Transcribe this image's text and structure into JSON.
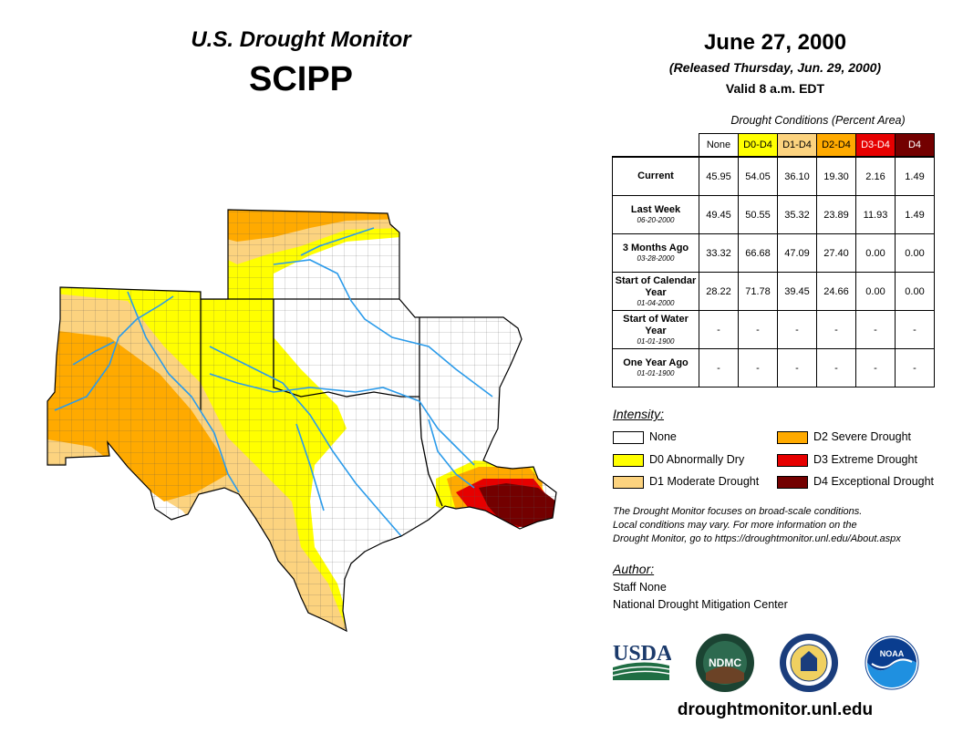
{
  "header": {
    "title": "U.S. Drought Monitor",
    "region": "SCIPP",
    "date": "June 27, 2000",
    "released": "(Released Thursday, Jun. 29, 2000)",
    "valid": "Valid 8 a.m. EDT"
  },
  "conditions": {
    "caption": "Drought Conditions (Percent Area)",
    "columns": [
      "None",
      "D0-D4",
      "D1-D4",
      "D2-D4",
      "D3-D4",
      "D4"
    ],
    "rows": [
      {
        "label": "Current",
        "date": "",
        "values": [
          "45.95",
          "54.05",
          "36.10",
          "19.30",
          "2.16",
          "1.49"
        ]
      },
      {
        "label": "Last Week",
        "date": "06-20-2000",
        "values": [
          "49.45",
          "50.55",
          "35.32",
          "23.89",
          "11.93",
          "1.49"
        ]
      },
      {
        "label": "3 Months Ago",
        "date": "03-28-2000",
        "values": [
          "33.32",
          "66.68",
          "47.09",
          "27.40",
          "0.00",
          "0.00"
        ]
      },
      {
        "label": "Start of Calendar Year",
        "date": "01-04-2000",
        "values": [
          "28.22",
          "71.78",
          "39.45",
          "24.66",
          "0.00",
          "0.00"
        ]
      },
      {
        "label": "Start of Water Year",
        "date": "01-01-1900",
        "values": [
          "-",
          "-",
          "-",
          "-",
          "-",
          "-"
        ]
      },
      {
        "label": "One Year Ago",
        "date": "01-01-1900",
        "values": [
          "-",
          "-",
          "-",
          "-",
          "-",
          "-"
        ]
      }
    ]
  },
  "intensity": {
    "title": "Intensity:",
    "items": [
      {
        "label": "None",
        "color": "#ffffff"
      },
      {
        "label": "D0 Abnormally Dry",
        "color": "#ffff00"
      },
      {
        "label": "D1 Moderate Drought",
        "color": "#fcd37f"
      },
      {
        "label": "D2 Severe Drought",
        "color": "#ffaa00"
      },
      {
        "label": "D3 Extreme Drought",
        "color": "#e60000"
      },
      {
        "label": "D4 Exceptional Drought",
        "color": "#730000"
      }
    ]
  },
  "note": {
    "line1": "The Drought Monitor focuses on broad-scale conditions.",
    "line2": "Local conditions may vary. For more information on the",
    "line3": "Drought Monitor, go to https://droughtmonitor.unl.edu/About.aspx"
  },
  "author": {
    "title": "Author:",
    "name": "Staff None",
    "org": "National Drought Mitigation Center"
  },
  "logos": {
    "usda": "USDA",
    "ndmc": "NDMC",
    "noaa": "NOAA"
  },
  "website": "droughtmonitor.unl.edu"
}
